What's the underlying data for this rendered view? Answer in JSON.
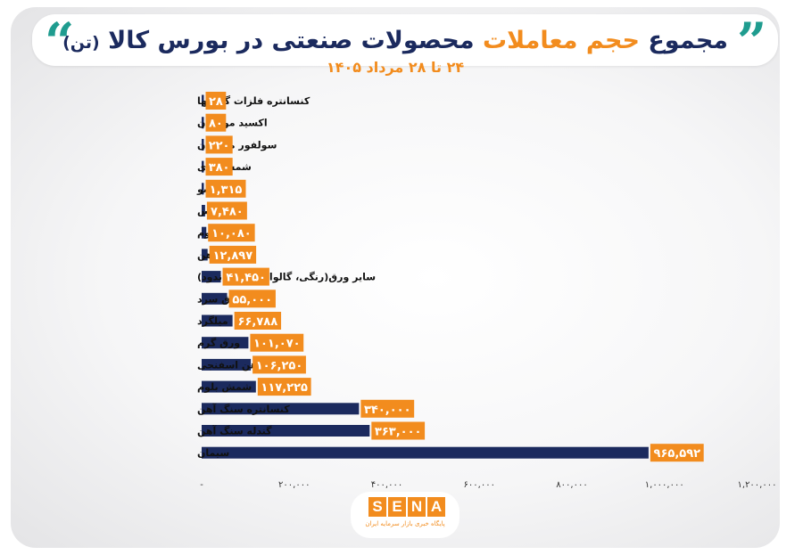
{
  "header": {
    "title_part1": "مجموع",
    "title_part2": "حجم معاملات",
    "title_part3": "محصولات صنعتی در بورس کالا",
    "title_unit": "(تن)",
    "subtitle": "۲۴ تا ۲۸ مرداد ۱۴۰۵"
  },
  "colors": {
    "bar": "#1b2a5e",
    "label_bg": "#f28c1e",
    "label_text": "#ffffff",
    "accent": "#1f9c8f"
  },
  "chart_data": {
    "type": "bar",
    "orientation": "horizontal",
    "categories": [
      "کنسانتره فلزات گرانبها",
      "اکسید مولیبدن",
      "سولفور مولیبدن",
      "شمش روی",
      "تیشو",
      "مس",
      "آلومینیوم",
      "تیرآهن",
      "سایر ورق(رنگی، گالوانیزه،قلع اندود)",
      "ورق سرد",
      "میلگرد",
      "ورق گرم",
      "آهن اسفنجی",
      "شمش بلوم",
      "کنسانتره سنگ آهن",
      "گندله سنگ آهن",
      "سیمان"
    ],
    "values": [
      28,
      80,
      220,
      380,
      1315,
      7480,
      10080,
      12897,
      41450,
      55000,
      66788,
      101070,
      106250,
      117225,
      340000,
      363000,
      965592
    ],
    "value_labels": [
      "۲۸",
      "۸۰",
      "۲۲۰",
      "۳۸۰",
      "۱,۳۱۵",
      "۷,۴۸۰",
      "۱۰,۰۸۰",
      "۱۲,۸۹۷",
      "۴۱,۴۵۰",
      "۵۵,۰۰۰",
      "۶۶,۷۸۸",
      "۱۰۱,۰۷۰",
      "۱۰۶,۲۵۰",
      "۱۱۷,۲۲۵",
      "۳۴۰,۰۰۰",
      "۳۶۳,۰۰۰",
      "۹۶۵,۵۹۲"
    ],
    "xlim": [
      0,
      1200000
    ],
    "xticks": [
      0,
      200000,
      400000,
      600000,
      800000,
      1000000,
      1200000
    ],
    "xtick_labels": [
      "-",
      "۲۰۰,۰۰۰",
      "۴۰۰,۰۰۰",
      "۶۰۰,۰۰۰",
      "۸۰۰,۰۰۰",
      "۱,۰۰۰,۰۰۰",
      "۱,۲۰۰,۰۰۰"
    ],
    "grid": false,
    "legend": "none"
  },
  "logo": {
    "letters": [
      "S",
      "E",
      "N",
      "A"
    ],
    "tagline": "پایگاه خبری بازار سرمایه ایران"
  }
}
